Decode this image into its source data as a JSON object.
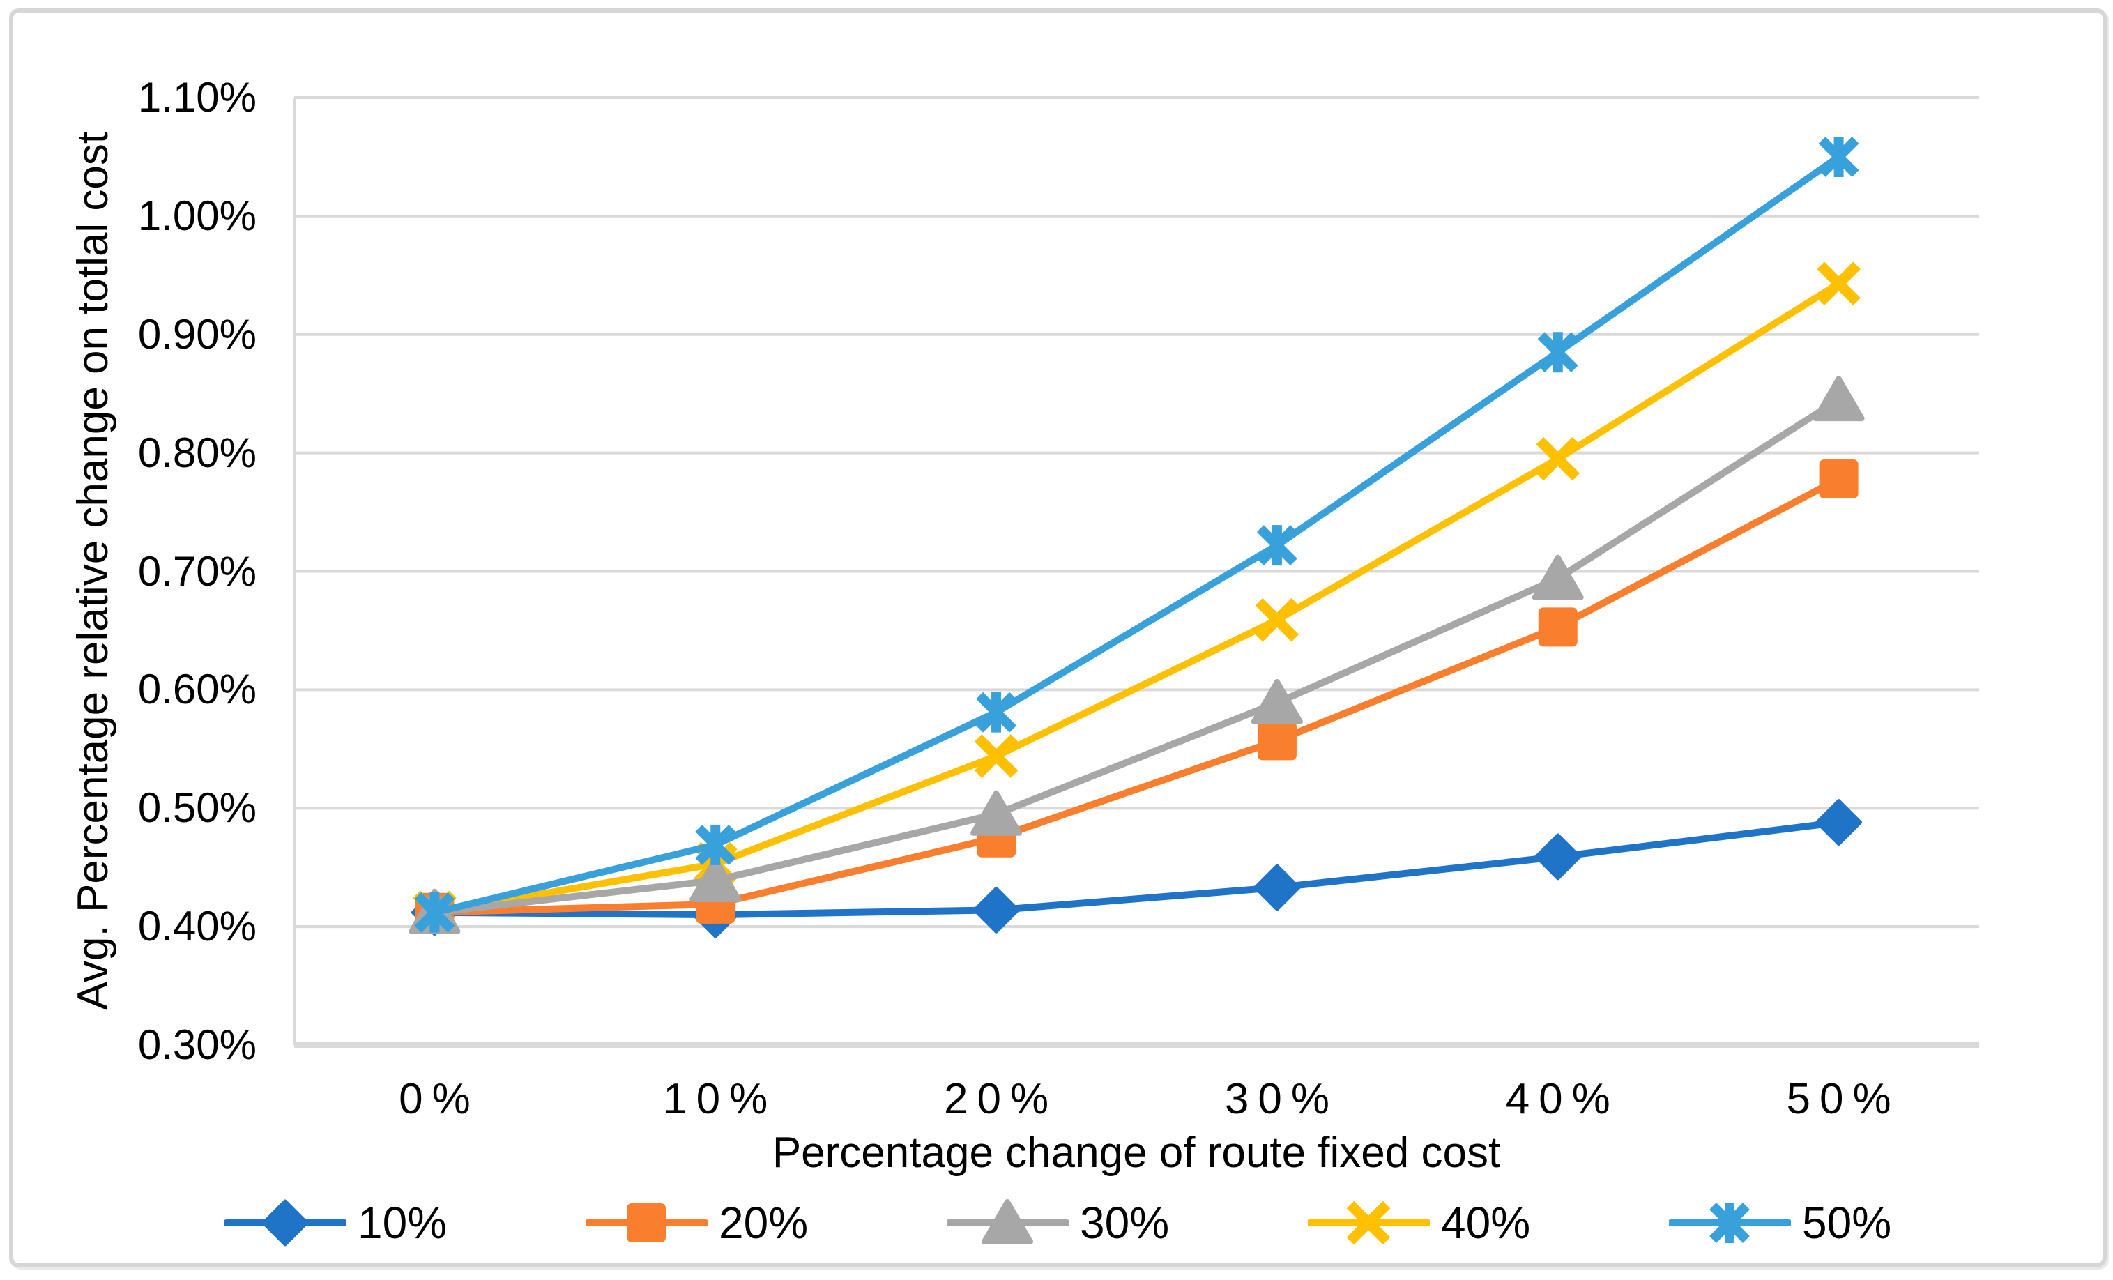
{
  "frame": {
    "border_color": "#d6d6d6",
    "background": "#ffffff"
  },
  "chart_data": {
    "type": "line",
    "title": "",
    "xlabel": "Percentage change of route fixed cost",
    "ylabel": "Avg. Percentage relative change on totlal cost",
    "categories": [
      "0%",
      "10%",
      "20%",
      "30%",
      "40%",
      "50%"
    ],
    "y_ticks": [
      "1.10%",
      "1.00%",
      "0.90%",
      "0.80%",
      "0.70%",
      "0.60%",
      "0.50%",
      "0.40%",
      "0.30%"
    ],
    "y_tick_values": [
      1.1,
      1.0,
      0.9,
      0.8,
      0.7,
      0.6,
      0.5,
      0.4,
      0.3
    ],
    "ylim": [
      0.3,
      1.1
    ],
    "y_unit": "percent",
    "grid": true,
    "gridline_color": "#d9d9d9",
    "axis_line_color": "#d9d9d9",
    "legend_position": "bottom",
    "series": [
      {
        "name": "10%",
        "color": "#2074C8",
        "marker": "diamond",
        "values": [
          0.412,
          0.41,
          0.414,
          0.433,
          0.459,
          0.488
        ]
      },
      {
        "name": "20%",
        "color": "#F97F2E",
        "marker": "square",
        "values": [
          0.412,
          0.419,
          0.475,
          0.557,
          0.653,
          0.778
        ]
      },
      {
        "name": "30%",
        "color": "#A7A7A7",
        "marker": "triangle",
        "values": [
          0.412,
          0.439,
          0.495,
          0.589,
          0.694,
          0.845
        ]
      },
      {
        "name": "40%",
        "color": "#FFC000",
        "marker": "x",
        "values": [
          0.412,
          0.453,
          0.544,
          0.659,
          0.795,
          0.943
        ]
      },
      {
        "name": "50%",
        "color": "#38A1DB",
        "marker": "asterisk",
        "values": [
          0.412,
          0.469,
          0.581,
          0.722,
          0.885,
          1.05
        ]
      }
    ],
    "draw_order": [
      0,
      1,
      3,
      2,
      4
    ]
  }
}
